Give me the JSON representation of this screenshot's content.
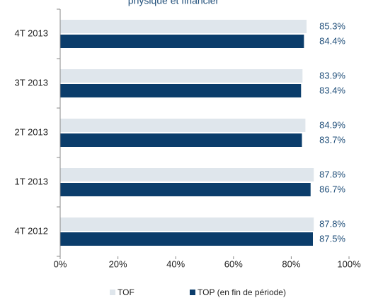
{
  "chart_data": {
    "type": "bar",
    "orientation": "horizontal",
    "title": "physique et financier",
    "categories": [
      "4T 2013",
      "3T 2013",
      "2T 2013",
      "1T 2013",
      "4T 2012"
    ],
    "series": [
      {
        "name": "TOF",
        "color": "#dfe6ec",
        "values": [
          85.3,
          83.9,
          84.9,
          87.8,
          87.8
        ],
        "value_labels": [
          "85.3%",
          "83.9%",
          "84.9%",
          "87.8%",
          "87.8%"
        ]
      },
      {
        "name": "TOP (en fin de période)",
        "color": "#0b3d6b",
        "values": [
          84.4,
          83.4,
          83.7,
          86.7,
          87.5
        ],
        "value_labels": [
          "84.4%",
          "83.4%",
          "83.7%",
          "86.7%",
          "87.5%"
        ]
      }
    ],
    "xlim": [
      0,
      100
    ],
    "xticks": [
      {
        "value": 0,
        "label": "0%"
      },
      {
        "value": 20,
        "label": "20%"
      },
      {
        "value": 40,
        "label": "40%"
      },
      {
        "value": 60,
        "label": "60%"
      },
      {
        "value": 80,
        "label": "80%"
      },
      {
        "value": 100,
        "label": "100%"
      }
    ],
    "legend": "bottom"
  }
}
